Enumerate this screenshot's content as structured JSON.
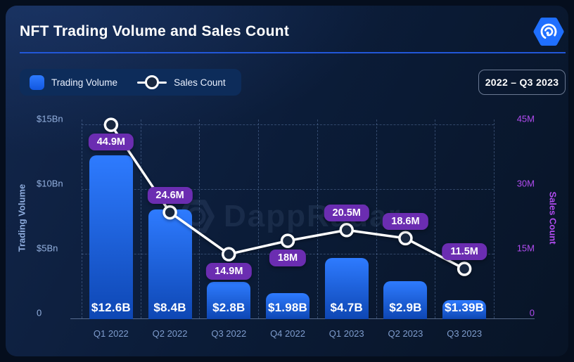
{
  "header": {
    "title": "NFT Trading Volume and Sales Count"
  },
  "logo": {
    "name": "DappRadar logo"
  },
  "controls": {
    "legend": [
      {
        "label": "Trading Volume",
        "swatch": "blue-bar-square"
      },
      {
        "label": "Sales Count",
        "swatch": "white-line-circle-marker"
      }
    ],
    "range_label": "2022 – Q3 2023"
  },
  "chart_data": {
    "type": "bar+line combo",
    "categories": [
      "Q1 2022",
      "Q2 2022",
      "Q3 2022",
      "Q4 2022",
      "Q1 2023",
      "Q2 2023",
      "Q3 2023"
    ],
    "series": [
      {
        "name": "Trading Volume",
        "type": "bar",
        "axis": "left",
        "unit": "USD billions",
        "values": [
          12.6,
          8.4,
          2.8,
          1.98,
          4.7,
          2.9,
          1.39
        ],
        "labels": [
          "$12.6B",
          "$8.4B",
          "$2.8B",
          "$1.98B",
          "$4.7B",
          "$2.9B",
          "$1.39B"
        ]
      },
      {
        "name": "Sales Count",
        "type": "line",
        "axis": "right",
        "unit": "millions",
        "values": [
          44.9,
          24.6,
          14.9,
          18,
          20.5,
          18.6,
          11.5
        ],
        "labels": [
          "44.9M",
          "24.6M",
          "14.9M",
          "18M",
          "20.5M",
          "18.6M",
          "11.5M"
        ],
        "label_side": [
          "below",
          "above",
          "below",
          "below",
          "above",
          "above",
          "above"
        ]
      }
    ],
    "left_axis": {
      "title": "Trading Volume",
      "ticks": [
        "$15Bn",
        "$10Bn",
        "$5Bn",
        "0"
      ],
      "tick_values": [
        15,
        10,
        5,
        0
      ],
      "max": 15
    },
    "right_axis": {
      "title": "Sales Count",
      "ticks": [
        "45M",
        "30M",
        "15M",
        "0"
      ],
      "tick_values": [
        45,
        30,
        15,
        0
      ],
      "max": 45
    },
    "grid": {
      "horizontal": "dashed",
      "vertical": "dashed category boundaries",
      "legend_position": "top-left"
    },
    "watermark": "DappRadar"
  },
  "colors": {
    "background": "#050e1d",
    "card": "#0b1c38",
    "bar_top": "#2e7bff",
    "bar_bottom": "#0e47b4",
    "line": "#ffffff",
    "marker_fill": "#18273f",
    "badge_bg": "#6b2db1",
    "left_axis_text": "#93b0de",
    "right_axis_text": "#b14cf0",
    "divider": "#2257d8",
    "legend_bg": "#0d2c5a",
    "logo_blue": "#1f6fff"
  }
}
